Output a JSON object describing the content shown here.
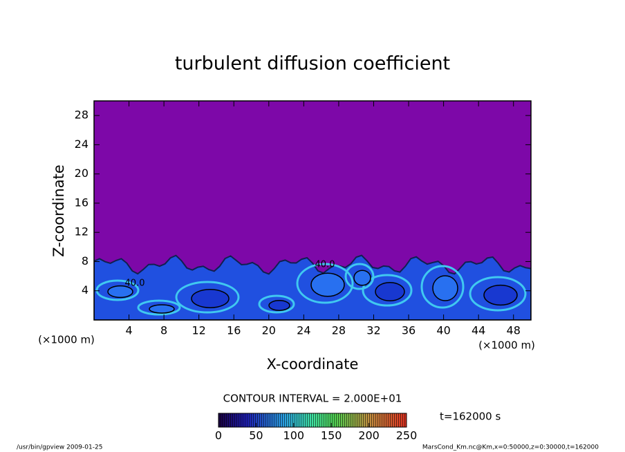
{
  "chart_data": {
    "type": "contour",
    "title": "turbulent diffusion coefficient",
    "x_label": "X-coordinate",
    "y_label": "Z-coordinate",
    "x_unit": "(×1000 m)",
    "y_unit": "(×1000 m)",
    "xlim": [
      0,
      50
    ],
    "xticks": [
      4,
      8,
      12,
      16,
      20,
      24,
      28,
      32,
      36,
      40,
      44,
      48
    ],
    "ylim": [
      0,
      30
    ],
    "yticks": [
      4,
      8,
      12,
      16,
      20,
      24,
      28
    ],
    "contour_interval": "CONTOUR INTERVAL = 2.000E+01",
    "contour_labels": [
      "40.0",
      "40.0"
    ],
    "time_label": "t=162000 s",
    "colorbar": {
      "lim": [
        0,
        250
      ],
      "ticks": [
        0,
        50,
        100,
        150,
        200,
        250
      ]
    },
    "footer_left": "/usr/bin/gpview  2009-01-25",
    "footer_right": "MarsCond_Km.nc@Km,x=0:50000,z=0:30000,t=162000"
  }
}
